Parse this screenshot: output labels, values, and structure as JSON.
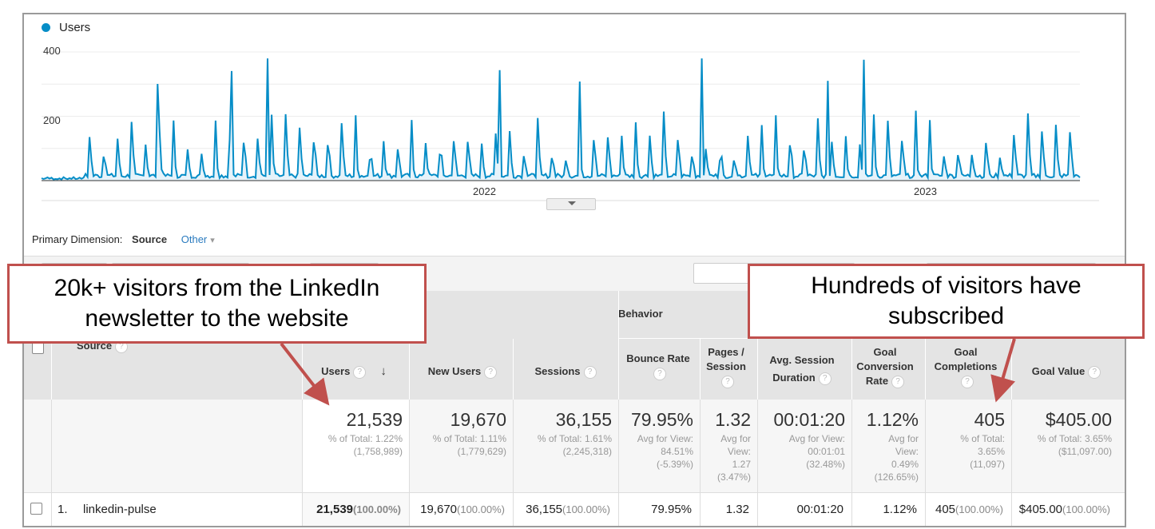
{
  "legend": {
    "label": "Users",
    "color": "#058dc7"
  },
  "chart_data": {
    "type": "line",
    "series": [
      {
        "name": "Users"
      }
    ],
    "y_ticks": [
      "400",
      "200"
    ],
    "ylim": [
      0,
      400
    ],
    "x_tick_labels": [
      "2022",
      "2023"
    ],
    "line_color": "#058dc7",
    "fill_color": "#e6f3fa"
  },
  "primary_dimension": {
    "label": "Primary Dimension:",
    "current": "Source",
    "other": "Other"
  },
  "table": {
    "group_header": "Behavior",
    "columns": {
      "source": "Source",
      "users": "Users",
      "new_users": "New Users",
      "sessions": "Sessions",
      "bounce_rate": "Bounce Rate",
      "pages_session": "Pages / Session",
      "avg_session": "Avg. Session Duration",
      "goal_conv": "Goal Conversion Rate",
      "goal_compl": "Goal Completions",
      "goal_value": "Goal Value"
    },
    "totals": {
      "users": {
        "value": "21,539",
        "lines": [
          "% of Total: 1.22%",
          "(1,758,989)"
        ]
      },
      "new_users": {
        "value": "19,670",
        "lines": [
          "% of Total: 1.11%",
          "(1,779,629)"
        ]
      },
      "sessions": {
        "value": "36,155",
        "lines": [
          "% of Total: 1.61%",
          "(2,245,318)"
        ]
      },
      "bounce_rate": {
        "value": "79.95%",
        "lines": [
          "Avg for View:",
          "84.51%",
          "(-5.39%)"
        ]
      },
      "pages_session": {
        "value": "1.32",
        "lines": [
          "Avg for",
          "View:",
          "1.27",
          "(3.47%)"
        ]
      },
      "avg_session": {
        "value": "00:01:20",
        "lines": [
          "Avg for View:",
          "00:01:01",
          "(32.48%)"
        ]
      },
      "goal_conv": {
        "value": "1.12%",
        "lines": [
          "Avg for",
          "View:",
          "0.49%",
          "(126.65%)"
        ]
      },
      "goal_compl": {
        "value": "405",
        "lines": [
          "% of Total:",
          "3.65%",
          "(11,097)"
        ]
      },
      "goal_value": {
        "value": "$405.00",
        "lines": [
          "% of Total: 3.65%",
          "($11,097.00)"
        ]
      }
    },
    "rows": [
      {
        "index": "1.",
        "source": "linkedin-pulse",
        "users": "21,539",
        "users_pct": "(100.00%)",
        "new_users": "19,670",
        "new_users_pct": "(100.00%)",
        "sessions": "36,155",
        "sessions_pct": "(100.00%)",
        "bounce_rate": "79.95%",
        "pages_session": "1.32",
        "avg_session": "00:01:20",
        "goal_conv": "1.12%",
        "goal_compl": "405",
        "goal_compl_pct": "(100.00%)",
        "goal_value": "$405.00",
        "goal_value_pct": "(100.00%)"
      }
    ]
  },
  "callouts": {
    "left": "20k+ visitors from the LinkedIn newsletter to the website",
    "right": "Hundreds of visitors have subscribed",
    "color": "#c0504d"
  }
}
